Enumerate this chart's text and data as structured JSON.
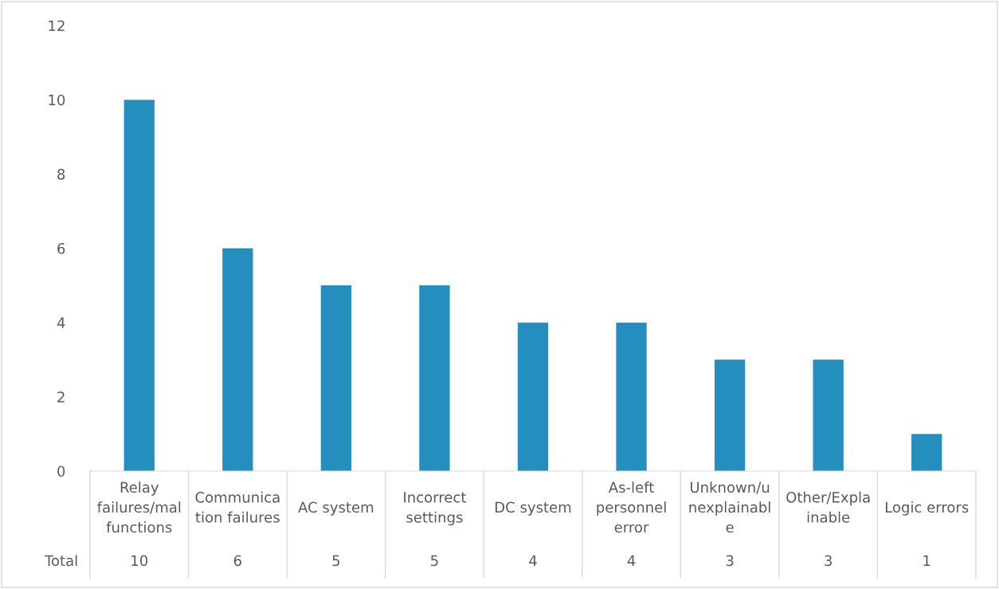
{
  "chart_data": {
    "type": "bar",
    "categories": [
      "Relay\nfailures/mal\nfunctions",
      "Communica\ntion failures",
      "AC system",
      "Incorrect\nsettings",
      "DC system",
      "As-left\npersonnel\nerror",
      "Unknown/u\nnexplainabl\ne",
      "Other/Expla\ninable",
      "Logic errors"
    ],
    "series": [
      {
        "name": "Total",
        "color": "#248fbf",
        "values": [
          10,
          6,
          5,
          5,
          4,
          4,
          3,
          3,
          1
        ]
      }
    ],
    "ylim": [
      0,
      12
    ],
    "yticks": [
      0,
      2,
      4,
      6,
      8,
      10,
      12
    ],
    "grid": false,
    "data_labels": true,
    "legend": false
  }
}
